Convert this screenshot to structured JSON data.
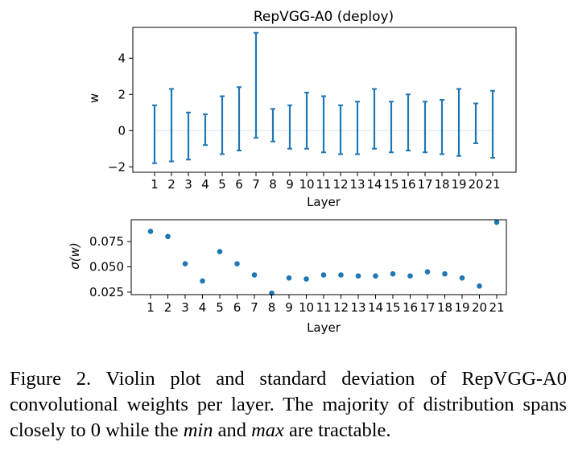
{
  "chart_data": [
    {
      "type": "errorbar",
      "title": "RepVGG-A0 (deploy)",
      "xlabel": "Layer",
      "ylabel": "w",
      "categories": [
        "1",
        "2",
        "3",
        "4",
        "5",
        "6",
        "7",
        "8",
        "9",
        "10",
        "11",
        "12",
        "13",
        "14",
        "15",
        "16",
        "17",
        "18",
        "19",
        "20",
        "21"
      ],
      "series": [
        {
          "name": "weights",
          "mean": [
            0,
            0,
            0,
            0,
            0,
            0,
            0,
            0,
            0,
            0,
            0,
            0,
            0,
            0,
            0,
            0,
            0,
            0,
            0,
            0,
            0
          ],
          "min": [
            -1.8,
            -1.7,
            -1.6,
            -0.8,
            -1.3,
            -1.1,
            -0.4,
            -0.6,
            -1.0,
            -1.0,
            -1.2,
            -1.3,
            -1.3,
            -1.0,
            -1.2,
            -1.1,
            -1.2,
            -1.3,
            -1.4,
            -0.7,
            -1.5
          ],
          "max": [
            1.4,
            2.3,
            1.0,
            0.9,
            1.9,
            2.4,
            5.4,
            1.2,
            1.4,
            2.1,
            1.9,
            1.4,
            1.6,
            2.3,
            1.6,
            2.0,
            1.6,
            1.7,
            2.3,
            1.5,
            2.2
          ]
        }
      ],
      "yticks": [
        "−2",
        "0",
        "2",
        "4"
      ],
      "ylim": [
        -2.3,
        5.7
      ],
      "color": "#1f77b4"
    },
    {
      "type": "scatter",
      "xlabel": "Layer",
      "ylabel": "σ(w)",
      "categories": [
        "1",
        "2",
        "3",
        "4",
        "5",
        "6",
        "7",
        "8",
        "9",
        "10",
        "11",
        "12",
        "13",
        "14",
        "15",
        "16",
        "17",
        "18",
        "19",
        "20",
        "21"
      ],
      "values": [
        0.085,
        0.08,
        0.053,
        0.036,
        0.065,
        0.053,
        0.042,
        0.024,
        0.039,
        0.038,
        0.042,
        0.042,
        0.041,
        0.041,
        0.043,
        0.041,
        0.045,
        0.043,
        0.039,
        0.031,
        0.094
      ],
      "yticks": [
        "0.025",
        "0.050",
        "0.075"
      ],
      "ylim": [
        0.0225,
        0.0965
      ],
      "color": "#1f77b4"
    }
  ],
  "caption": {
    "part1": "Figure 2. Violin plot and standard deviation of RepVGG-A0 convolutional weights per layer.  The majority of distribution spans closely to 0 while the ",
    "min": "min",
    "part2": " and ",
    "max": "max",
    "part3": " are tractable."
  }
}
